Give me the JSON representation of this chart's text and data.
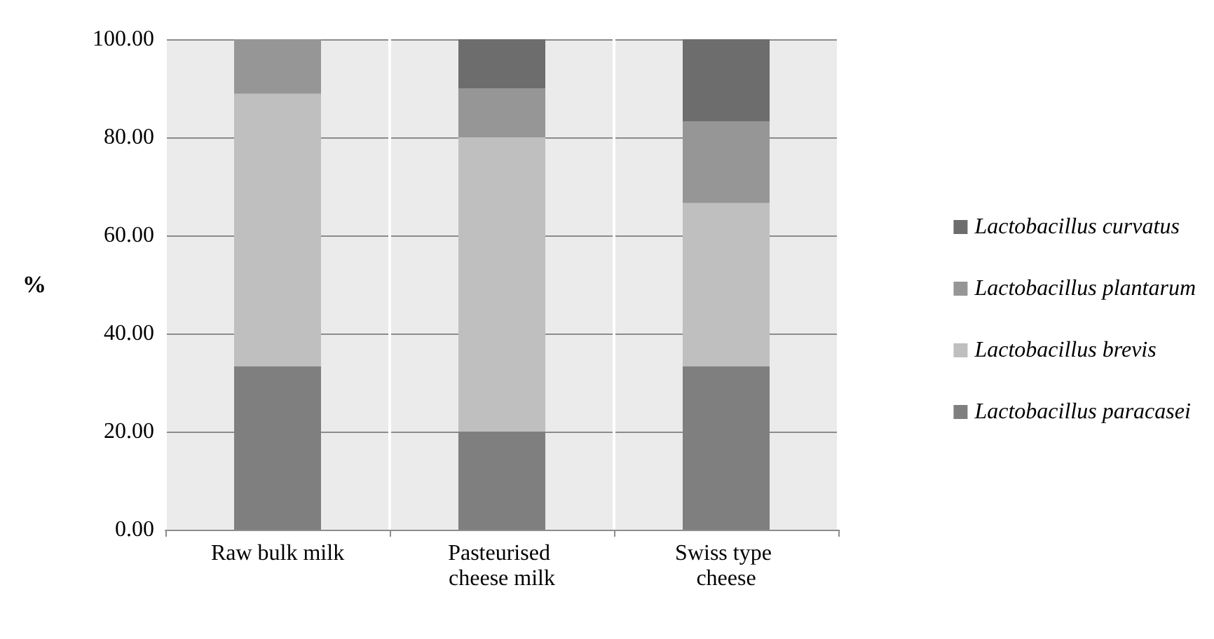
{
  "chart_data": {
    "type": "bar",
    "stacked": true,
    "ylabel": "%",
    "categories": [
      "Raw bulk milk",
      "Pasteurised cheese milk",
      "Swiss type cheese"
    ],
    "series": [
      {
        "name": "Lactobacillus paracasei",
        "color": "#7f7f7f",
        "values": [
          33.3,
          20,
          33.3
        ]
      },
      {
        "name": "Lactobacillus brevis",
        "color": "#bfbfbf",
        "values": [
          55.6,
          60,
          33.3
        ]
      },
      {
        "name": "Lactobacillus plantarum",
        "color": "#969696",
        "values": [
          11.1,
          10,
          16.7
        ]
      },
      {
        "name": "Lactobacillus curvatus",
        "color": "#6d6d6d",
        "values": [
          0,
          10,
          16.7
        ]
      }
    ],
    "ylim": [
      0,
      100
    ],
    "yticks": [
      {
        "value": 0,
        "label": "0.00"
      },
      {
        "value": 20,
        "label": "20.00"
      },
      {
        "value": 40,
        "label": "40.00"
      },
      {
        "value": 60,
        "label": "60.00"
      },
      {
        "value": 80,
        "label": "80.00"
      },
      {
        "value": 100,
        "label": "100.00"
      }
    ],
    "grid": true,
    "legend": "right"
  }
}
